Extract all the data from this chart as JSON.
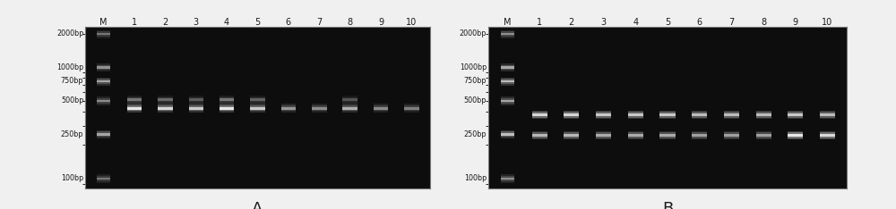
{
  "figsize": [
    10.0,
    2.34
  ],
  "dpi": 100,
  "fig_bg": "#f0f0f0",
  "gel_bg": "#0d0d0d",
  "lane_labels": [
    "M",
    "1",
    "2",
    "3",
    "4",
    "5",
    "6",
    "7",
    "8",
    "9",
    "10"
  ],
  "marker_labels": [
    "2000bp",
    "1000bp",
    "750bp",
    "500bp",
    "250bp",
    "100bp"
  ],
  "marker_y_log": [
    2000,
    1000,
    750,
    500,
    250,
    100
  ],
  "lane_label_fontsize": 7.0,
  "marker_label_fontsize": 5.8,
  "panel_label_fontsize": 13,
  "gel_border_color": "#777777",
  "label_color": "#1a1a1a",
  "panel_labels": [
    "A",
    "B"
  ],
  "panel_A_bands": {
    "marker": [
      [
        2000,
        "#999999",
        0.65
      ],
      [
        1000,
        "#aaaaaa",
        0.75
      ],
      [
        750,
        "#bbbbbb",
        0.82
      ],
      [
        500,
        "#aaaaaa",
        0.72
      ],
      [
        250,
        "#bbbbbb",
        0.8
      ],
      [
        100,
        "#999999",
        0.65
      ]
    ],
    "lanes": {
      "1": [
        [
          430,
          "#e8e8e8",
          1.0
        ],
        [
          510,
          "#aaaaaa",
          0.55
        ]
      ],
      "2": [
        [
          430,
          "#e0e0e0",
          0.95
        ],
        [
          510,
          "#a0a0a0",
          0.5
        ]
      ],
      "3": [
        [
          430,
          "#d8d8d8",
          0.9
        ],
        [
          510,
          "#989898",
          0.45
        ]
      ],
      "4": [
        [
          430,
          "#e8e8e8",
          1.0
        ],
        [
          510,
          "#aaaaaa",
          0.55
        ]
      ],
      "5": [
        [
          430,
          "#d8d8d8",
          0.88
        ],
        [
          510,
          "#989898",
          0.48
        ]
      ],
      "6": [
        [
          430,
          "#b8b8b8",
          0.7
        ]
      ],
      "7": [
        [
          430,
          "#b0b0b0",
          0.68
        ]
      ],
      "8": [
        [
          430,
          "#c8c8c8",
          0.78
        ],
        [
          510,
          "#909090",
          0.42
        ]
      ],
      "9": [
        [
          430,
          "#b0b0b0",
          0.66
        ]
      ],
      "10": [
        [
          430,
          "#a8a8a8",
          0.62
        ]
      ]
    }
  },
  "panel_B_bands": {
    "marker": [
      [
        2000,
        "#aaaaaa",
        0.75
      ],
      [
        1000,
        "#bbbbbb",
        0.82
      ],
      [
        750,
        "#cccccc",
        0.88
      ],
      [
        500,
        "#bbbbbb",
        0.82
      ],
      [
        250,
        "#cccccc",
        0.88
      ],
      [
        100,
        "#aaaaaa",
        0.75
      ]
    ],
    "lanes": {
      "1": [
        [
          375,
          "#e0e0e0",
          0.92
        ],
        [
          245,
          "#d0d0d0",
          0.8
        ]
      ],
      "2": [
        [
          375,
          "#e0e0e0",
          0.92
        ],
        [
          245,
          "#d0d0d0",
          0.8
        ]
      ],
      "3": [
        [
          375,
          "#d8d8d8",
          0.88
        ],
        [
          245,
          "#c8c8c8",
          0.76
        ]
      ],
      "4": [
        [
          375,
          "#d8d8d8",
          0.88
        ],
        [
          245,
          "#c8c8c8",
          0.76
        ]
      ],
      "5": [
        [
          375,
          "#d8d8d8",
          0.88
        ],
        [
          245,
          "#c8c8c8",
          0.76
        ]
      ],
      "6": [
        [
          375,
          "#d0d0d0",
          0.84
        ],
        [
          245,
          "#c0c0c0",
          0.72
        ]
      ],
      "7": [
        [
          375,
          "#d0d0d0",
          0.84
        ],
        [
          245,
          "#c0c0c0",
          0.72
        ]
      ],
      "8": [
        [
          375,
          "#d0d0d0",
          0.84
        ],
        [
          245,
          "#c0c0c0",
          0.72
        ]
      ],
      "9": [
        [
          375,
          "#d8d8d8",
          0.88
        ],
        [
          245,
          "#e8e8e8",
          1.0
        ]
      ],
      "10": [
        [
          375,
          "#d0d0d0",
          0.84
        ],
        [
          245,
          "#e0e0e0",
          0.95
        ]
      ]
    }
  }
}
